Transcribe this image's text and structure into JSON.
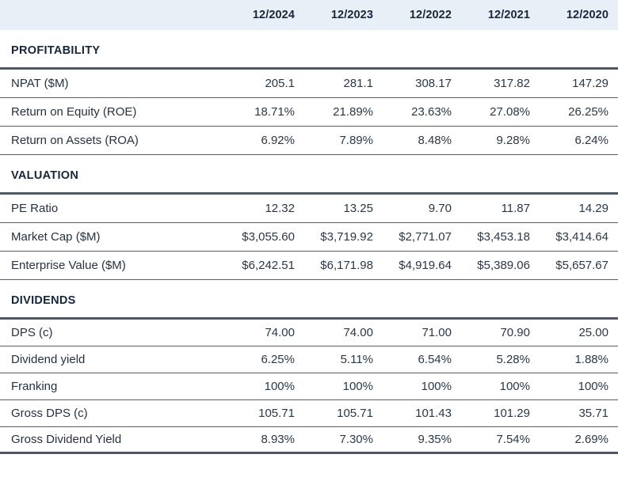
{
  "table": {
    "columns": [
      "12/2024",
      "12/2023",
      "12/2022",
      "12/2021",
      "12/2020"
    ],
    "sections": [
      {
        "title": "PROFITABILITY",
        "rows": [
          {
            "label": "NPAT ($M)",
            "values": [
              "205.1",
              "281.1",
              "308.17",
              "317.82",
              "147.29"
            ]
          },
          {
            "label": "Return on Equity (ROE)",
            "values": [
              "18.71%",
              "21.89%",
              "23.63%",
              "27.08%",
              "26.25%"
            ]
          },
          {
            "label": "Return on Assets (ROA)",
            "values": [
              "6.92%",
              "7.89%",
              "8.48%",
              "9.28%",
              "6.24%"
            ]
          }
        ]
      },
      {
        "title": "VALUATION",
        "rows": [
          {
            "label": "PE Ratio",
            "values": [
              "12.32",
              "13.25",
              "9.70",
              "11.87",
              "14.29"
            ]
          },
          {
            "label": "Market Cap ($M)",
            "values": [
              "$3,055.60",
              "$3,719.92",
              "$2,771.07",
              "$3,453.18",
              "$3,414.64"
            ]
          },
          {
            "label": "Enterprise Value ($M)",
            "values": [
              "$6,242.51",
              "$6,171.98",
              "$4,919.64",
              "$5,389.06",
              "$5,657.67"
            ]
          }
        ]
      },
      {
        "title": "DIVIDENDS",
        "rows": [
          {
            "label": "DPS (c)",
            "values": [
              "74.00",
              "74.00",
              "71.00",
              "70.90",
              "25.00"
            ]
          },
          {
            "label": "Dividend yield",
            "values": [
              "6.25%",
              "5.11%",
              "6.54%",
              "5.28%",
              "1.88%"
            ]
          },
          {
            "label": "Franking",
            "values": [
              "100%",
              "100%",
              "100%",
              "100%",
              "100%"
            ]
          },
          {
            "label": "Gross DPS (c)",
            "values": [
              "105.71",
              "105.71",
              "101.43",
              "101.29",
              "35.71"
            ]
          },
          {
            "label": "Gross Dividend Yield",
            "values": [
              "8.93%",
              "7.30%",
              "9.35%",
              "7.54%",
              "2.69%"
            ]
          }
        ]
      }
    ],
    "colors": {
      "header_bg": "#e8eff7",
      "heading_text": "#17263b",
      "body_text": "#25323f",
      "section_border": "#47596a",
      "row_divider": "#4e6070"
    }
  }
}
